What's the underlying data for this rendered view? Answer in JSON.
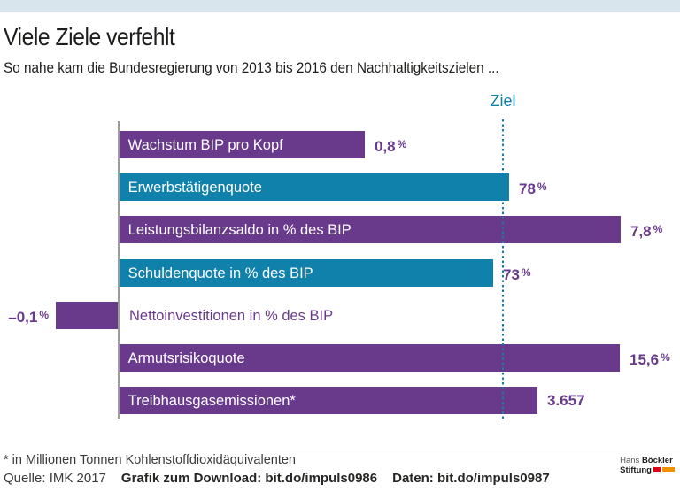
{
  "title": "Viele Ziele verfehlt",
  "subtitle": "So nahe kam die Bundesregierung von 2013 bis 2016 den Nachhaltigkeitszielen ...",
  "chart_data": {
    "type": "bar",
    "orientation": "horizontal",
    "target_line_label": "Ziel",
    "note": "Bar length shows degree of target attainment relative to the dotted Ziel line (Ziel = 100); printed values are the actual figures reached.",
    "rows": [
      {
        "label": "Wachstum BIP pro Kopf",
        "value": "0,8 %",
        "pct_of_target": 64.0,
        "color": "purple"
      },
      {
        "label": "Erwerbstätigenquote",
        "value": "78 %",
        "pct_of_target": 101.6,
        "color": "teal"
      },
      {
        "label": "Leistungsbilanzsaldo in % des BIP",
        "value": "7,8 %",
        "pct_of_target": 130.6,
        "color": "purple"
      },
      {
        "label": "Schuldenquote in % des BIP",
        "value": "73 %",
        "pct_of_target": 97.5,
        "color": "teal"
      },
      {
        "label": "Nettoinvestitionen in % des BIP",
        "value": "–0,1 %",
        "pct_of_target": -16.3,
        "color": "purple"
      },
      {
        "label": "Armutsrisikoquote",
        "value": "15,6 %",
        "pct_of_target": 130.3,
        "color": "purple"
      },
      {
        "label": "Treibhausgasemissionen*",
        "value": "3.657",
        "pct_of_target": 109.0,
        "color": "purple"
      }
    ],
    "colors": {
      "purple": "#693a8c",
      "teal": "#0f81aa",
      "target_line": "#1180a8",
      "axis": "#9b9b9b",
      "value_text": "#693a8c"
    }
  },
  "footer": {
    "footnote": "* in Millionen Tonnen Kohlenstoffdioxidäquivalenten",
    "source": "Quelle: IMK 2017",
    "download_label": "Grafik zum Download: bit.do/impuls0986",
    "data_label": "Daten: bit.do/impuls0987",
    "logo": {
      "line1_regular": "Hans",
      "line1_bold": "Böckler",
      "line2_bold": "Stiftung",
      "block_colors": [
        "#e2001a",
        "#f39200"
      ]
    }
  }
}
